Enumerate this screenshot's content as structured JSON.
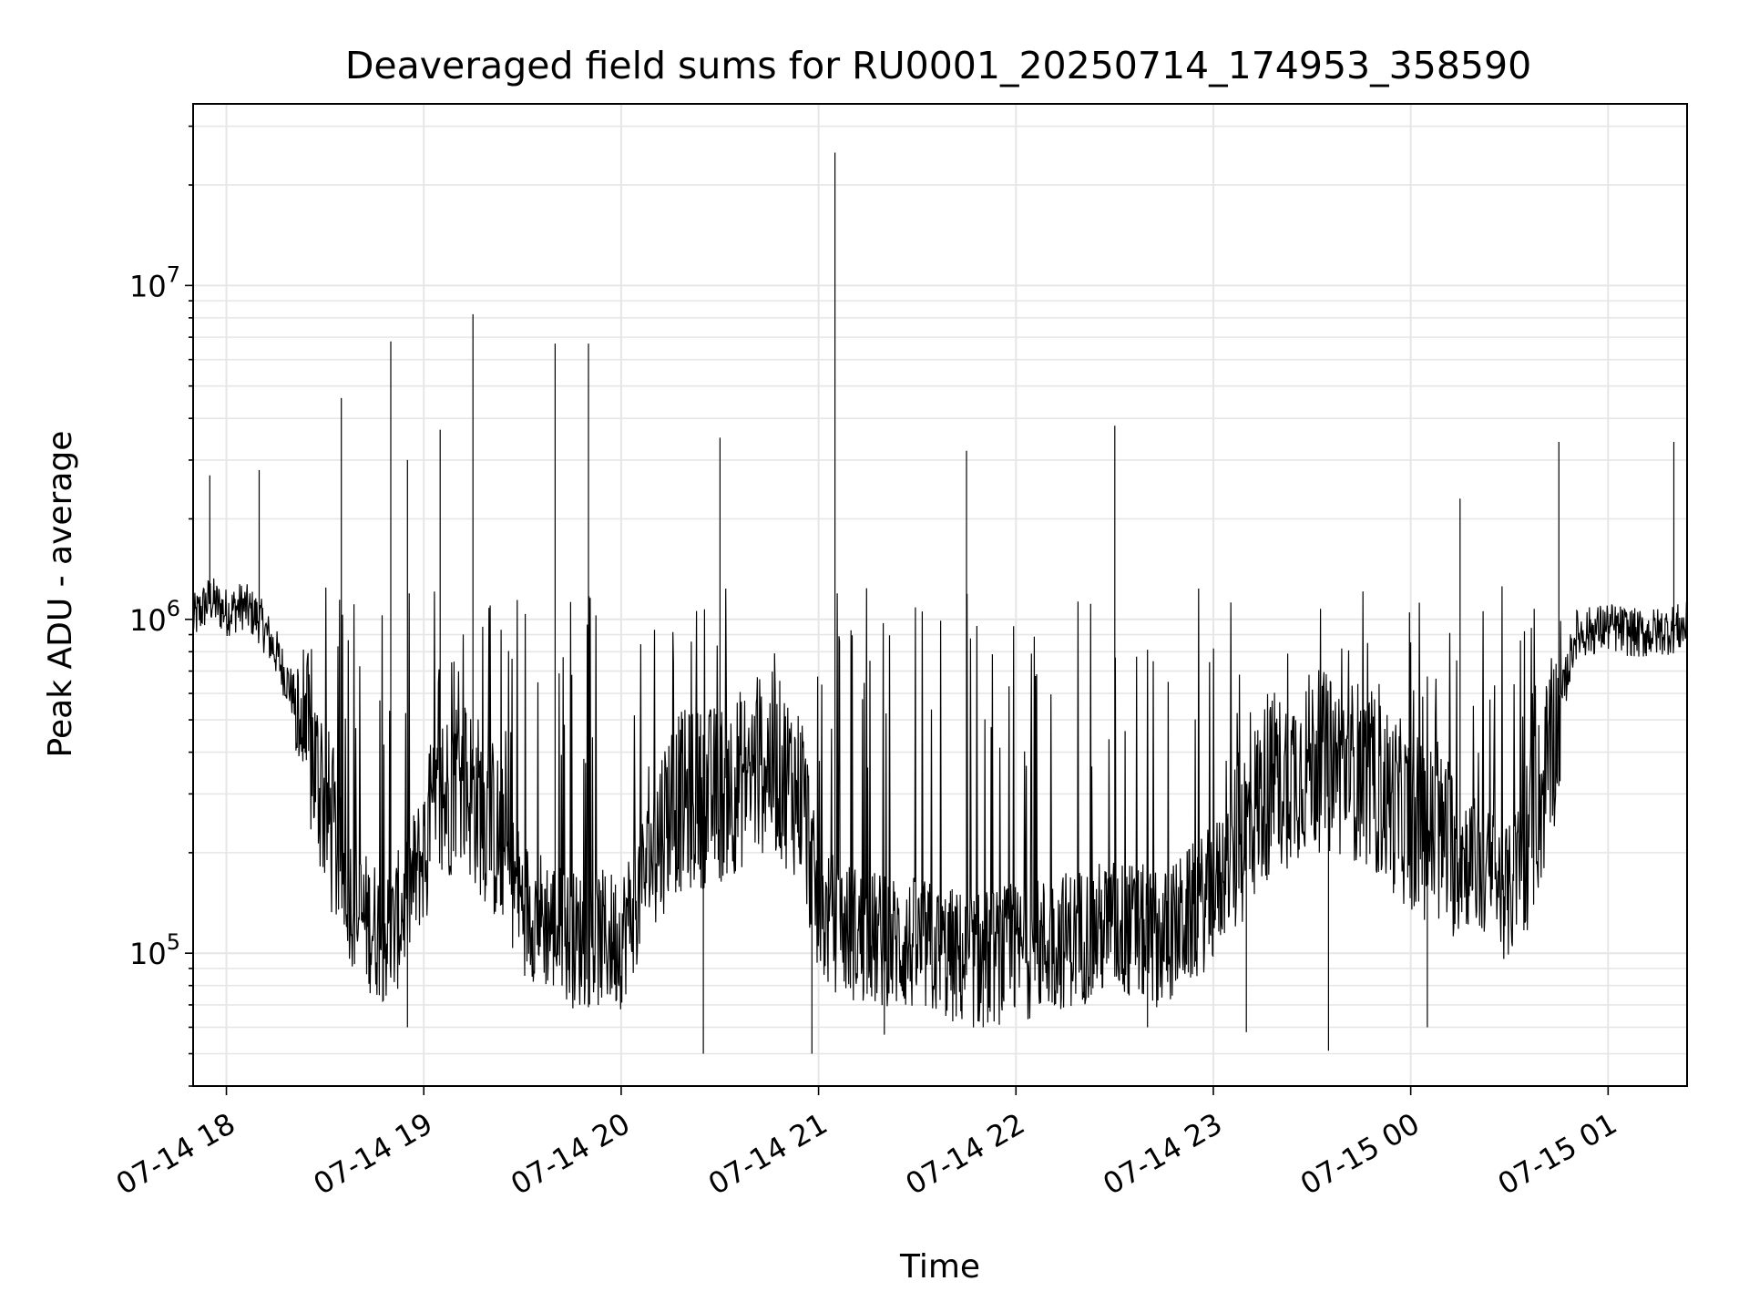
{
  "chart_data": {
    "type": "line",
    "title": "Deaveraged field sums for RU0001_20250714_174953_358590",
    "xlabel": "Time",
    "ylabel": "Peak ADU - average",
    "yscale": "log",
    "grid": true,
    "color": "#000000",
    "x_start": "2025-07-14 17:49:53",
    "x_end": "2025-07-15 01:24:00",
    "ylim": [
      40000,
      35000000
    ],
    "xticks": [
      {
        "t": "2025-07-14 18:00",
        "label": "07-14 18"
      },
      {
        "t": "2025-07-14 19:00",
        "label": "07-14 19"
      },
      {
        "t": "2025-07-14 20:00",
        "label": "07-14 20"
      },
      {
        "t": "2025-07-14 21:00",
        "label": "07-14 21"
      },
      {
        "t": "2025-07-14 22:00",
        "label": "07-14 22"
      },
      {
        "t": "2025-07-14 23:00",
        "label": "07-14 23"
      },
      {
        "t": "2025-07-15 00:00",
        "label": "07-15 00"
      },
      {
        "t": "2025-07-15 01:00",
        "label": "07-15 01"
      }
    ],
    "yticks": [
      {
        "value": 100000,
        "base": "10",
        "exp": "5"
      },
      {
        "value": 1000000,
        "base": "10",
        "exp": "6"
      },
      {
        "value": 10000000,
        "base": "10",
        "exp": "7"
      }
    ],
    "series": [
      {
        "points": [
          [
            "2025-07-14 17:50",
            1000000
          ],
          [
            "2025-07-14 17:55",
            1150000
          ],
          [
            "2025-07-14 18:00",
            1050000
          ],
          [
            "2025-07-14 18:05",
            1100000
          ],
          [
            "2025-07-14 18:10",
            1000000
          ],
          [
            "2025-07-14 18:15",
            800000
          ],
          [
            "2025-07-14 18:20",
            600000
          ],
          [
            "2025-07-14 18:25",
            420000
          ],
          [
            "2025-07-14 18:30",
            280000
          ],
          [
            "2025-07-14 18:35",
            180000
          ],
          [
            "2025-07-14 18:40",
            130000
          ],
          [
            "2025-07-14 18:50",
            110000
          ],
          [
            "2025-07-14 19:00",
            200000
          ],
          [
            "2025-07-14 19:10",
            350000
          ],
          [
            "2025-07-14 19:20",
            250000
          ],
          [
            "2025-07-14 19:30",
            140000
          ],
          [
            "2025-07-14 19:45",
            110000
          ],
          [
            "2025-07-14 20:00",
            110000
          ],
          [
            "2025-07-14 20:15",
            280000
          ],
          [
            "2025-07-14 20:30",
            300000
          ],
          [
            "2025-07-14 20:45",
            380000
          ],
          [
            "2025-07-14 20:55",
            300000
          ],
          [
            "2025-07-14 21:00",
            130000
          ],
          [
            "2025-07-14 21:15",
            110000
          ],
          [
            "2025-07-14 21:30",
            105000
          ],
          [
            "2025-07-14 21:45",
            95000
          ],
          [
            "2025-07-14 22:00",
            100000
          ],
          [
            "2025-07-14 22:15",
            110000
          ],
          [
            "2025-07-14 22:30",
            120000
          ],
          [
            "2025-07-14 22:45",
            110000
          ],
          [
            "2025-07-14 23:00",
            150000
          ],
          [
            "2025-07-14 23:15",
            300000
          ],
          [
            "2025-07-14 23:30",
            380000
          ],
          [
            "2025-07-14 23:45",
            350000
          ],
          [
            "2025-07-15 00:00",
            250000
          ],
          [
            "2025-07-15 00:15",
            200000
          ],
          [
            "2025-07-15 00:30",
            150000
          ],
          [
            "2025-07-15 00:40",
            300000
          ],
          [
            "2025-07-15 00:50",
            900000
          ],
          [
            "2025-07-15 01:00",
            950000
          ],
          [
            "2025-07-15 01:10",
            900000
          ],
          [
            "2025-07-15 01:24",
            950000
          ]
        ],
        "spikes": [
          [
            "2025-07-14 17:55",
            2700000
          ],
          [
            "2025-07-14 18:10",
            2800000
          ],
          [
            "2025-07-14 18:35",
            4600000
          ],
          [
            "2025-07-14 18:50",
            6800000
          ],
          [
            "2025-07-14 18:55",
            3000000
          ],
          [
            "2025-07-14 19:05",
            3700000
          ],
          [
            "2025-07-14 19:15",
            8200000
          ],
          [
            "2025-07-14 19:40",
            6700000
          ],
          [
            "2025-07-14 19:50",
            6700000
          ],
          [
            "2025-07-14 20:30",
            3500000
          ],
          [
            "2025-07-14 21:05",
            25000000
          ],
          [
            "2025-07-14 21:45",
            3200000
          ],
          [
            "2025-07-14 22:30",
            3800000
          ],
          [
            "2025-07-15 00:15",
            2300000
          ],
          [
            "2025-07-15 00:45",
            3400000
          ],
          [
            "2025-07-15 01:20",
            3400000
          ]
        ],
        "dips": [
          [
            "2025-07-14 18:55",
            60000
          ],
          [
            "2025-07-14 20:25",
            50000
          ],
          [
            "2025-07-14 20:58",
            50000
          ],
          [
            "2025-07-14 21:20",
            57000
          ],
          [
            "2025-07-14 21:50",
            60000
          ],
          [
            "2025-07-14 22:40",
            60000
          ],
          [
            "2025-07-14 23:10",
            58000
          ],
          [
            "2025-07-14 23:35",
            51000
          ],
          [
            "2025-07-15 00:05",
            60000
          ]
        ]
      }
    ]
  }
}
